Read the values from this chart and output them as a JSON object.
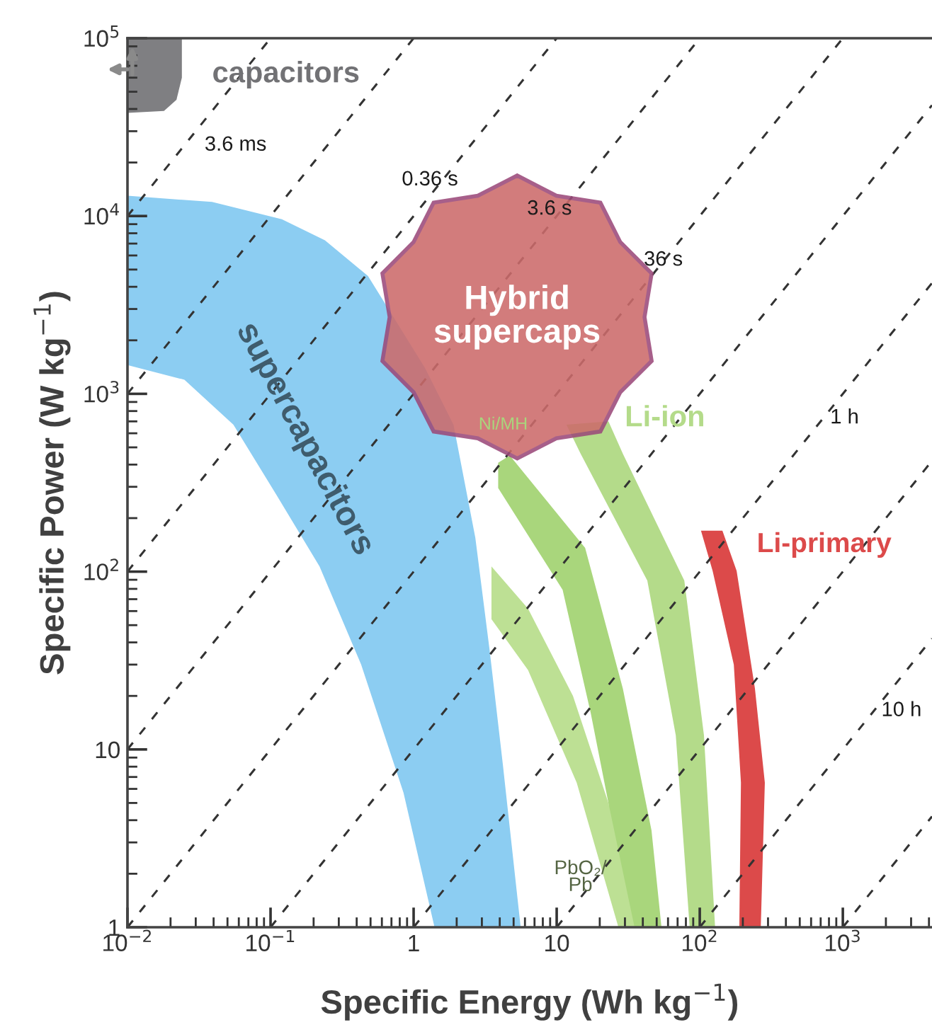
{
  "chart_data": {
    "type": "area",
    "xlabel": "Specific Energy (Wh kg$^{−1}$)",
    "ylabel": "Specific Power (W kg$^{−1}$)",
    "log": "xy",
    "xlim": [
      0.01,
      4200
    ],
    "ylim": [
      1,
      100000
    ],
    "xticks": [
      {
        "value": 0.01,
        "label": "10$^{−2}$"
      },
      {
        "value": 0.1,
        "label": "10$^{−1}$"
      },
      1,
      10,
      {
        "value": 100,
        "label": "10$^{2}$"
      },
      {
        "value": 1000,
        "label": "10$^{3}$"
      }
    ],
    "yticks": [
      1,
      10,
      {
        "value": 100,
        "label": "10$^{2}$"
      },
      {
        "value": 1000,
        "label": "10$^{3}$"
      },
      {
        "value": 10000,
        "label": "10$^{4}$"
      },
      {
        "value": 100000,
        "label": "10$^{5}$"
      }
    ],
    "grid": false,
    "legend": false,
    "series": [
      {
        "name": "capacitors",
        "color": "#7f7f82",
        "x": [
          0.01,
          0.024,
          0.024,
          0.022,
          0.018,
          0.01
        ],
        "values": [
          100000,
          100000,
          60000,
          45000,
          39000,
          38000
        ]
      },
      {
        "name": "supercapacitors",
        "color": "#8ccdf2",
        "x": [
          0.01,
          0.039,
          0.12,
          0.24,
          0.48,
          1.2,
          1.9,
          2.7,
          3.4,
          4.2,
          5.6,
          1.4,
          0.85,
          0.43,
          0.22,
          0.11,
          0.055,
          0.025,
          0.01
        ],
        "values": [
          13000,
          12000,
          9600,
          7300,
          4600,
          1400,
          670,
          155,
          36,
          8.3,
          1,
          1,
          5.7,
          30,
          107,
          270,
          670,
          1200,
          1450
        ]
      },
      {
        "name": "Li-ion",
        "color": "#b4db8a",
        "x": [
          11.7,
          23,
          29,
          78,
          107,
          128,
          85,
          68,
          43,
          14.7
        ],
        "values": [
          670,
          700,
          460,
          89,
          12,
          1,
          1,
          12,
          89,
          460
        ]
      },
      {
        "name": "Ni/MH",
        "color": "#a9d67c",
        "x": [
          3.9,
          4.7,
          15.8,
          29,
          46,
          54,
          27,
          23,
          17.3,
          11,
          3.9
        ],
        "values": [
          410,
          450,
          136,
          22,
          3.5,
          1,
          1,
          5,
          16,
          79,
          295
        ]
      },
      {
        "name": "PbO₂/\nPb",
        "color": "#bde094",
        "x": [
          3.5,
          6.3,
          13,
          23,
          35,
          27,
          13.8,
          6.3,
          3.5
        ],
        "values": [
          107,
          62,
          20,
          5,
          1,
          1,
          6.5,
          28,
          54
        ]
      },
      {
        "name": "Li-primary",
        "color": "#dc4a4a",
        "x": [
          102,
          144,
          181,
          243,
          285,
          267,
          189,
          194,
          173,
          123
        ],
        "values": [
          170,
          170,
          101,
          22,
          6.5,
          1,
          1,
          6.5,
          30,
          101
        ]
      },
      {
        "type": "line",
        "color": "#333333",
        "line_style": "dashed",
        "x": [
          0.01,
          0.1
        ],
        "values": [
          10000,
          100000
        ]
      },
      {
        "type": "line",
        "color": "#333333",
        "line_style": "dashed",
        "x": [
          0.01,
          1
        ],
        "values": [
          1000,
          100000
        ]
      },
      {
        "type": "line",
        "color": "#333333",
        "line_style": "dashed",
        "x": [
          0.01,
          10
        ],
        "values": [
          100,
          100000
        ]
      },
      {
        "type": "line",
        "color": "#333333",
        "line_style": "dashed",
        "x": [
          0.01,
          100
        ],
        "values": [
          10,
          100000
        ]
      },
      {
        "type": "line",
        "color": "#333333",
        "line_style": "dashed",
        "x": [
          0.01,
          1000
        ],
        "values": [
          1,
          100000
        ]
      },
      {
        "type": "line",
        "color": "#333333",
        "line_style": "dashed",
        "x": [
          0.1,
          4200
        ],
        "values": [
          1,
          42000
        ]
      },
      {
        "type": "line",
        "color": "#333333",
        "line_style": "dashed",
        "x": [
          1,
          4200
        ],
        "values": [
          1,
          4200
        ]
      },
      {
        "type": "line",
        "color": "#333333",
        "line_style": "dashed",
        "x": [
          10,
          4200
        ],
        "values": [
          1,
          420
        ]
      },
      {
        "type": "line",
        "color": "#333333",
        "line_style": "dashed",
        "x": [
          100,
          4200
        ],
        "values": [
          1,
          42
        ]
      },
      {
        "type": "line",
        "color": "#333333",
        "line_style": "dashed",
        "x": [
          1000,
          4200
        ],
        "values": [
          1,
          4.2
        ]
      },
      {
        "name": "Hybrid\nsupercaps",
        "color": "#cc6b6b",
        "x": [
          5.3,
          9.95,
          20.2,
          27.8,
          46.1,
          41.1,
          46.1,
          27.8,
          20.2,
          9.95,
          5.3,
          2.81,
          1.38,
          1.0,
          0.605,
          0.68,
          0.605,
          1.0,
          1.38,
          2.81
        ],
        "values": [
          16900,
          13000,
          11900,
          7140,
          4760,
          2700,
          1530,
          1020,
          614,
          562,
          433,
          562,
          614,
          1020,
          1530,
          2700,
          4760,
          7140,
          11900,
          13000
        ]
      }
    ],
    "annotations": [
      {
        "text": "3.6 ms",
        "x": 0.025,
        "y": 25000
      },
      {
        "text": "0.36 s",
        "x": 1.3,
        "y": 13000
      },
      {
        "text": "3.6 s",
        "x": 8.9,
        "y": 8900
      },
      {
        "text": "36 s",
        "x": 46,
        "y": 4600
      },
      {
        "text": "1 h",
        "x": 660,
        "y": 660
      },
      {
        "text": "10 h",
        "x": 1650,
        "y": 16.5
      }
    ]
  }
}
